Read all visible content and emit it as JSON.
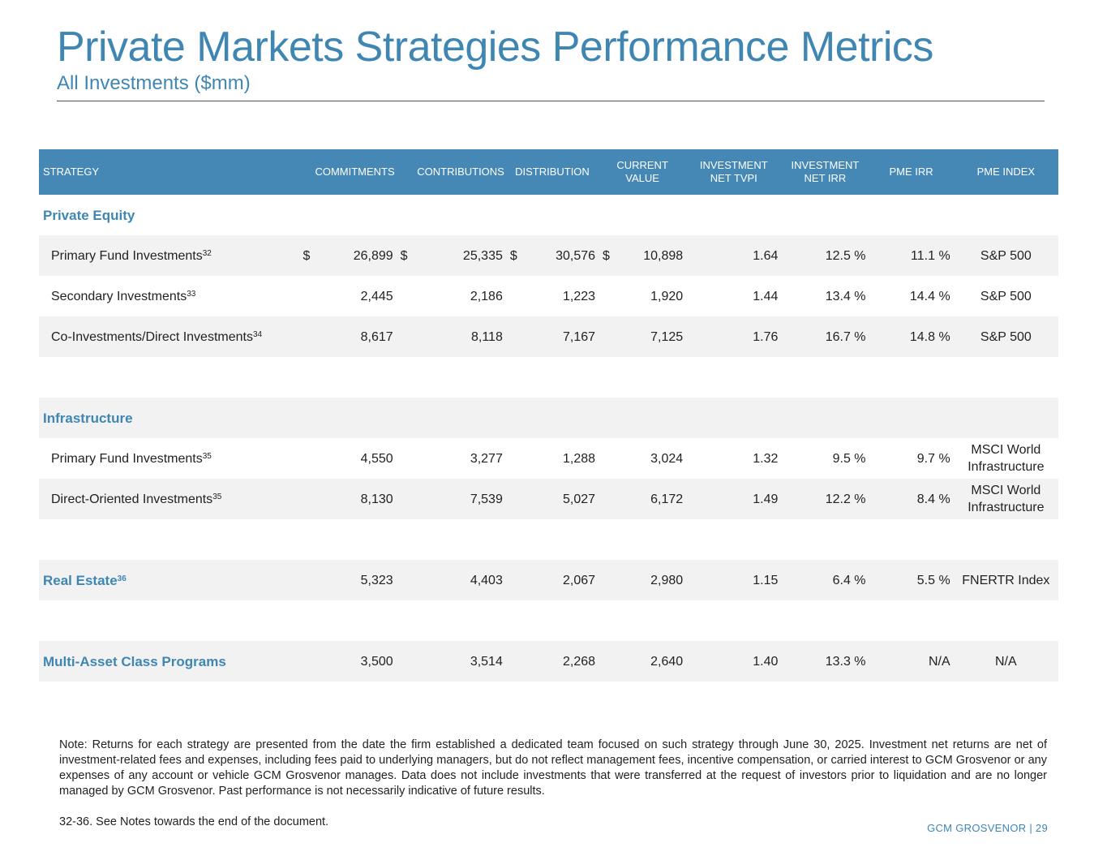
{
  "page": {
    "title": "Private Markets Strategies Performance Metrics",
    "subtitle": "All Investments ($mm)"
  },
  "table": {
    "headers": {
      "strategy": "STRATEGY",
      "commitments": "COMMITMENTS",
      "contributions": "CONTRIBUTIONS",
      "distribution": "DISTRIBUTION",
      "current_value_1": "CURRENT",
      "current_value_2": "VALUE",
      "tvpi_1": "INVESTMENT",
      "tvpi_2": "NET TVPI",
      "irr_1": "INVESTMENT",
      "irr_2": "NET IRR",
      "pme_irr": "PME IRR",
      "pme_index": "PME INDEX"
    },
    "currency_symbol": "$",
    "groups": {
      "private_equity": {
        "label": "Private Equity"
      },
      "infrastructure": {
        "label": "Infrastructure"
      }
    },
    "rows": [
      {
        "name": "Primary Fund Investments",
        "sup": "32",
        "commitments": "26,899",
        "contributions": "25,335",
        "distribution": "30,576",
        "current_value": "10,898",
        "tvpi": "1.64",
        "irr": "12.5 %",
        "pme_irr": "11.1 %",
        "pme_index": "S&P 500"
      },
      {
        "name": "Secondary Investments",
        "sup": "33",
        "commitments": "2,445",
        "contributions": "2,186",
        "distribution": "1,223",
        "current_value": "1,920",
        "tvpi": "1.44",
        "irr": "13.4 %",
        "pme_irr": "14.4 %",
        "pme_index": "S&P 500"
      },
      {
        "name": "Co-Investments/Direct Investments",
        "sup": "34",
        "commitments": "8,617",
        "contributions": "8,118",
        "distribution": "7,167",
        "current_value": "7,125",
        "tvpi": "1.76",
        "irr": "16.7 %",
        "pme_irr": "14.8 %",
        "pme_index": "S&P 500"
      },
      {
        "name": "Primary Fund Investments",
        "sup": "35",
        "commitments": "4,550",
        "contributions": "3,277",
        "distribution": "1,288",
        "current_value": "3,024",
        "tvpi": "1.32",
        "irr": "9.5 %",
        "pme_irr": "9.7 %",
        "pme_index": "MSCI World Infrastructure"
      },
      {
        "name": "Direct-Oriented Investments",
        "sup": "35",
        "commitments": "8,130",
        "contributions": "7,539",
        "distribution": "5,027",
        "current_value": "6,172",
        "tvpi": "1.49",
        "irr": "12.2 %",
        "pme_irr": "8.4 %",
        "pme_index": "MSCI World Infrastructure"
      },
      {
        "name": "Real Estate",
        "sup": "36",
        "commitments": "5,323",
        "contributions": "4,403",
        "distribution": "2,067",
        "current_value": "2,980",
        "tvpi": "1.15",
        "irr": "6.4 %",
        "pme_irr": "5.5 %",
        "pme_index": "FNERTR Index"
      },
      {
        "name": "Multi-Asset Class Programs",
        "sup": "",
        "commitments": "3,500",
        "contributions": "3,514",
        "distribution": "2,268",
        "current_value": "2,640",
        "tvpi": "1.40",
        "irr": "13.3 %",
        "pme_irr": "N/A",
        "pme_index": "N/A"
      }
    ]
  },
  "note": "Note: Returns for each strategy are presented from the date the firm established a dedicated team focused on such strategy through June 30, 2025. Investment net returns are net of investment-related fees and expenses, including fees paid to underlying managers, but do not reflect management fees, incentive compensation, or carried interest to GCM Grosvenor or any expenses of any account or vehicle GCM Grosvenor manages. Data does not include investments that were transferred at the request of investors prior to liquidation and are no longer managed by GCM Grosvenor. Past performance is not necessarily indicative of future results.",
  "footnote": "32-36.   See Notes towards the end of the document.",
  "footer": "GCM GROSVENOR | 29",
  "colors": {
    "accent": "#3f86b3",
    "header_bg": "#4588b5",
    "row_shade": "#f2f2f2"
  }
}
